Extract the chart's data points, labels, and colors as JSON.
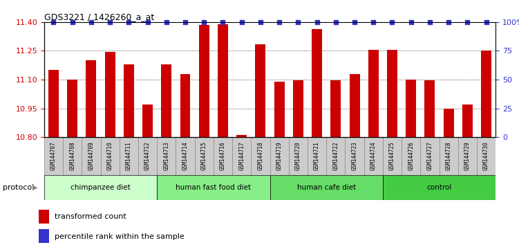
{
  "title": "GDS3221 / 1426260_a_at",
  "samples": [
    "GSM144707",
    "GSM144708",
    "GSM144709",
    "GSM144710",
    "GSM144711",
    "GSM144712",
    "GSM144713",
    "GSM144714",
    "GSM144715",
    "GSM144716",
    "GSM144717",
    "GSM144718",
    "GSM144719",
    "GSM144720",
    "GSM144721",
    "GSM144722",
    "GSM144723",
    "GSM144724",
    "GSM144725",
    "GSM144726",
    "GSM144727",
    "GSM144728",
    "GSM144729",
    "GSM144730"
  ],
  "values": [
    11.15,
    11.1,
    11.2,
    11.245,
    11.18,
    10.97,
    11.18,
    11.13,
    11.385,
    11.39,
    10.81,
    11.285,
    11.09,
    11.095,
    11.365,
    11.095,
    11.13,
    11.255,
    11.255,
    11.1,
    11.095,
    10.95,
    10.97,
    11.25
  ],
  "bar_color": "#cc0000",
  "dot_color": "#3333cc",
  "ylim_left": [
    10.8,
    11.4
  ],
  "ylim_right": [
    0,
    100
  ],
  "yticks_left": [
    10.8,
    10.95,
    11.1,
    11.25,
    11.4
  ],
  "yticks_right": [
    0,
    25,
    50,
    75,
    100
  ],
  "groups": [
    {
      "label": "chimpanzee diet",
      "start": 0,
      "end": 6,
      "color": "#ccffcc"
    },
    {
      "label": "human fast food diet",
      "start": 6,
      "end": 12,
      "color": "#88ee88"
    },
    {
      "label": "human cafe diet",
      "start": 12,
      "end": 18,
      "color": "#66dd66"
    },
    {
      "label": "control",
      "start": 18,
      "end": 24,
      "color": "#44cc44"
    }
  ],
  "protocol_label": "protocol",
  "legend_bar_label": "transformed count",
  "legend_dot_label": "percentile rank within the sample",
  "tick_label_color_left": "#cc0000",
  "tick_label_color_right": "#3333cc",
  "label_bg_color": "#cccccc",
  "label_border_color": "#888888"
}
